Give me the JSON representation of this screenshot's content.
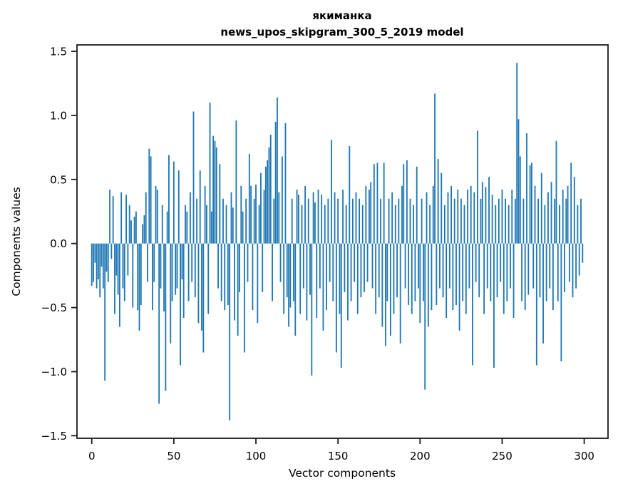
{
  "figure": {
    "title": "якиманка",
    "subtitle": "news_upos_skipgram_300_5_2019 model"
  },
  "chart_data": {
    "type": "bar",
    "title": "якиманка",
    "subtitle": "news_upos_skipgram_300_5_2019 model",
    "xlabel": "Vector components",
    "ylabel": "Components values",
    "x_tick_values": [
      0,
      50,
      100,
      150,
      200,
      250,
      300
    ],
    "x_tick_labels": [
      "0",
      "50",
      "100",
      "150",
      "200",
      "250",
      "300"
    ],
    "y_tick_values": [
      1.5,
      1.0,
      0.5,
      0.0,
      -0.5,
      -1.0,
      -1.5
    ],
    "y_tick_labels": [
      "1.5",
      "1.0",
      "0.5",
      "0.0",
      "−0.5",
      "−1.0",
      "−1.5"
    ],
    "xlim": [
      -9,
      314.5
    ],
    "ylim": [
      -1.52,
      1.55
    ],
    "grid": false,
    "legend": null,
    "bar_color": "#1f77b4",
    "axis_color": "#1a1a1a",
    "n_bars": 300,
    "x_start": 0,
    "values": [
      -0.33,
      -0.3,
      -0.15,
      -0.35,
      -0.28,
      -0.42,
      -0.18,
      -0.35,
      -1.07,
      -0.22,
      -0.3,
      0.42,
      -0.12,
      0.37,
      -0.55,
      -0.25,
      -0.4,
      -0.65,
      0.4,
      -0.35,
      -0.45,
      0.38,
      -0.25,
      0.3,
      0.18,
      -0.5,
      0.21,
      0.25,
      -0.52,
      -0.68,
      -0.48,
      0.15,
      0.22,
      0.4,
      -0.3,
      0.74,
      0.68,
      -0.52,
      -0.3,
      0.45,
      0.42,
      -1.25,
      -0.35,
      0.3,
      -0.53,
      -1.15,
      0.25,
      0.69,
      -0.78,
      -0.45,
      0.64,
      -0.4,
      -0.35,
      0.57,
      -0.95,
      -0.28,
      -0.58,
      0.3,
      0.25,
      -0.45,
      0.4,
      -0.3,
      1.03,
      -0.42,
      0.35,
      -0.62,
      0.57,
      -0.68,
      -0.85,
      0.45,
      0.3,
      -0.55,
      1.1,
      0.25,
      0.84,
      0.8,
      0.75,
      -0.35,
      0.62,
      -0.45,
      0.35,
      -0.52,
      0.3,
      -0.48,
      -1.38,
      0.4,
      0.28,
      -0.6,
      0.96,
      -0.72,
      -0.38,
      0.45,
      0.25,
      -0.85,
      0.35,
      -0.3,
      0.7,
      0.45,
      -0.52,
      0.35,
      0.46,
      -0.62,
      0.3,
      0.55,
      -0.38,
      0.42,
      0.6,
      0.65,
      0.75,
      0.85,
      -0.45,
      0.35,
      0.95,
      1.14,
      0.4,
      -0.3,
      0.68,
      -0.55,
      0.94,
      -0.42,
      -0.65,
      -0.5,
      0.35,
      -0.45,
      -0.72,
      0.42,
      0.38,
      -0.55,
      0.3,
      -0.35,
      0.45,
      -0.6,
      0.35,
      -0.4,
      -1.03,
      0.4,
      0.32,
      -0.58,
      0.42,
      -0.35,
      0.38,
      -0.68,
      0.3,
      -0.52,
      0.35,
      -0.3,
      0.81,
      -0.45,
      0.4,
      -0.85,
      0.35,
      -0.55,
      -0.97,
      0.42,
      -0.38,
      0.3,
      -0.6,
      0.76,
      -0.45,
      0.35,
      -0.3,
      0.4,
      -0.55,
      0.35,
      -0.42,
      0.3,
      -0.38,
      0.45,
      -0.3,
      0.42,
      0.48,
      -0.35,
      0.62,
      -0.55,
      0.63,
      -0.42,
      0.35,
      -0.65,
      0.63,
      -0.8,
      -0.45,
      0.35,
      -0.72,
      0.4,
      -0.55,
      0.3,
      -0.42,
      0.35,
      -0.78,
      0.45,
      0.62,
      -0.35,
      0.65,
      -0.48,
      0.35,
      -0.55,
      0.3,
      -0.45,
      0.6,
      -0.35,
      -0.62,
      0.35,
      -0.45,
      -1.14,
      0.4,
      -0.65,
      0.3,
      -0.52,
      0.45,
      1.17,
      -0.48,
      0.66,
      -0.35,
      0.55,
      -0.42,
      0.3,
      -0.58,
      0.4,
      -0.35,
      0.45,
      -0.52,
      0.35,
      -0.48,
      0.42,
      -0.68,
      0.35,
      -0.45,
      0.3,
      -0.55,
      0.42,
      -0.35,
      0.45,
      -0.95,
      0.4,
      -0.3,
      0.88,
      -0.42,
      0.35,
      0.48,
      -0.55,
      0.44,
      -0.35,
      0.52,
      -0.45,
      0.38,
      -0.97,
      0.3,
      -0.42,
      0.35,
      -0.3,
      0.42,
      -0.55,
      0.35,
      -0.45,
      0.3,
      -0.35,
      0.42,
      -0.58,
      0.35,
      1.41,
      0.97,
      0.68,
      -0.45,
      0.35,
      -0.52,
      0.86,
      -0.4,
      0.61,
      0.63,
      -0.35,
      0.45,
      -0.95,
      0.35,
      -0.42,
      0.55,
      -0.78,
      0.3,
      -0.45,
      0.4,
      -0.35,
      0.48,
      -0.52,
      0.35,
      0.8,
      -0.45,
      0.3,
      -0.92,
      0.42,
      -0.38,
      0.35,
      0.45,
      -0.3,
      0.63,
      -0.42,
      0.52,
      -0.35,
      0.3,
      -0.25,
      0.35,
      -0.15
    ]
  }
}
